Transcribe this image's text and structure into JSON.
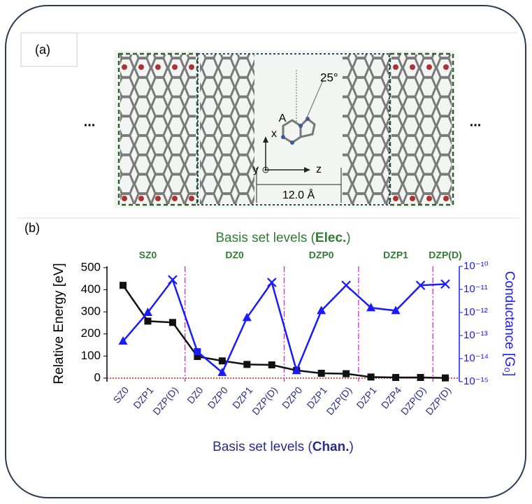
{
  "panel_a": {
    "label": "(a)",
    "ellipsis_left": "...",
    "ellipsis_right": "...",
    "angle": "25°",
    "atom_label": "A",
    "axis_x": "x",
    "axis_y": "y",
    "axis_z": "z",
    "gap": "12.0 Å"
  },
  "chart_data": {
    "type": "line",
    "panel_label": "(b)",
    "top_axis_label": {
      "prefix": "Basis set levels (",
      "bold": "Elec.",
      "suffix": ")"
    },
    "xlabel": {
      "prefix": "Basis set levels (",
      "bold": "Chan.",
      "suffix": ")"
    },
    "ylabel": "Relative Energy [eV]",
    "y2label": "Conductance [G₀]",
    "groups": [
      {
        "name": "SZ0",
        "count": 3
      },
      {
        "name": "DZ0",
        "count": 4
      },
      {
        "name": "DZP0",
        "count": 3
      },
      {
        "name": "DZP1",
        "count": 3
      },
      {
        "name": "DZP(D)",
        "count": 1
      }
    ],
    "categories": [
      "SZ0",
      "DZP1",
      "DZP(D)",
      "DZ0",
      "DZP0",
      "DZP1",
      "DZP(D)",
      "DZP0",
      "DZP1",
      "DZP(D)",
      "DZP1",
      "DZP4",
      "DZP(D)",
      "DZP(D)"
    ],
    "series": [
      {
        "color": "#111111",
        "marker": "square",
        "values": [
          420,
          258,
          252,
          98,
          78,
          62,
          60,
          35,
          22,
          20,
          5,
          3,
          3,
          1
        ]
      },
      {
        "color": "#1a1aff",
        "axis": "y2",
        "markers": [
          "triangle",
          "triangle",
          "cross",
          "square",
          "triangle",
          "triangle",
          "cross",
          "triangle",
          "triangle",
          "cross",
          "triangle",
          "triangle",
          "cross",
          "cross"
        ],
        "values": [
          5.7e-14,
          1e-12,
          2.6e-11,
          2e-14,
          2.5e-15,
          6e-13,
          2e-11,
          3e-15,
          1.2e-12,
          1.5e-11,
          1.6e-12,
          1.2e-12,
          1.5e-11,
          1.7e-11
        ]
      }
    ],
    "ylim": [
      -16,
      506
    ],
    "yticks": [
      0,
      100,
      200,
      300,
      400,
      500
    ],
    "y2lim": [
      1e-15,
      1e-10
    ],
    "y2log": true,
    "y2ticks": [
      {
        "value": 1e-15,
        "label": "10⁻¹⁵"
      },
      {
        "value": 1e-14,
        "label": "10⁻¹⁴"
      },
      {
        "value": 1e-13,
        "label": "10⁻¹³"
      },
      {
        "value": 1e-12,
        "label": "10⁻¹²"
      },
      {
        "value": 1e-11,
        "label": "10⁻¹¹"
      },
      {
        "value": 1e-10,
        "label": "10⁻¹⁰"
      }
    ],
    "zero_line_color": "#e00000",
    "separator_color": "#e020e0",
    "group_label_color": "#2e7d32",
    "category_color": "#2b2b8c"
  }
}
